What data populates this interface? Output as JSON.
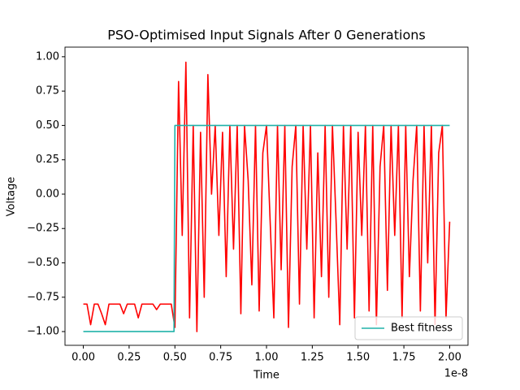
{
  "chart_data": {
    "type": "line",
    "title": "PSO-Optimised Input Signals After 0 Generations",
    "xlabel": "Time",
    "ylabel": "Voltage",
    "x_offset_label": "1e-8",
    "xlim": [
      -0.1,
      2.1
    ],
    "ylim": [
      -1.1,
      1.07
    ],
    "xticks": [
      {
        "value": 0,
        "label": "0.00"
      },
      {
        "value": 0.25,
        "label": "0.25"
      },
      {
        "value": 0.5,
        "label": "0.50"
      },
      {
        "value": 0.75,
        "label": "0.75"
      },
      {
        "value": 1,
        "label": "1.00"
      },
      {
        "value": 1.25,
        "label": "1.25"
      },
      {
        "value": 1.5,
        "label": "1.50"
      },
      {
        "value": 1.75,
        "label": "1.75"
      },
      {
        "value": 2,
        "label": "2.00"
      }
    ],
    "yticks": [
      {
        "value": -1,
        "label": "−1.00"
      },
      {
        "value": -0.75,
        "label": "−0.75"
      },
      {
        "value": -0.5,
        "label": "−0.50"
      },
      {
        "value": -0.25,
        "label": "−0.25"
      },
      {
        "value": 0,
        "label": "0.00"
      },
      {
        "value": 0.25,
        "label": "0.25"
      },
      {
        "value": 0.5,
        "label": "0.50"
      },
      {
        "value": 0.75,
        "label": "0.75"
      },
      {
        "value": 1,
        "label": "1.00"
      }
    ],
    "grid": false,
    "legend": "lower right",
    "series": [
      {
        "color": "#ff0000",
        "x": [
          0,
          0.02,
          0.04,
          0.06,
          0.08,
          0.1,
          0.12,
          0.14,
          0.16,
          0.18,
          0.2,
          0.22,
          0.24,
          0.26,
          0.28,
          0.3,
          0.32,
          0.34,
          0.36,
          0.38,
          0.4,
          0.42,
          0.44,
          0.46,
          0.48,
          0.5,
          0.52,
          0.54,
          0.56,
          0.58,
          0.6,
          0.62,
          0.64,
          0.66,
          0.68,
          0.7,
          0.72,
          0.74,
          0.76,
          0.78,
          0.8,
          0.82,
          0.84,
          0.86,
          0.88,
          0.9,
          0.92,
          0.94,
          0.96,
          0.98,
          1,
          1.02,
          1.04,
          1.06,
          1.08,
          1.1,
          1.12,
          1.14,
          1.16,
          1.18,
          1.2,
          1.22,
          1.24,
          1.26,
          1.28,
          1.3,
          1.32,
          1.34,
          1.36,
          1.38,
          1.4,
          1.42,
          1.44,
          1.46,
          1.48,
          1.5,
          1.52,
          1.54,
          1.56,
          1.58,
          1.6,
          1.62,
          1.64,
          1.66,
          1.68,
          1.7,
          1.72,
          1.74,
          1.76,
          1.78,
          1.8,
          1.82,
          1.84,
          1.86,
          1.88,
          1.9,
          1.92,
          1.94,
          1.96,
          1.98,
          2
        ],
        "values": [
          -0.8,
          -0.8,
          -0.95,
          -0.8,
          -0.8,
          -0.87,
          -0.95,
          -0.8,
          -0.8,
          -0.8,
          -0.8,
          -0.87,
          -0.8,
          -0.8,
          -0.8,
          -0.9,
          -0.8,
          -0.8,
          -0.8,
          -0.8,
          -0.84,
          -0.8,
          -0.8,
          -0.8,
          -0.8,
          -0.97,
          0.82,
          -0.3,
          0.96,
          -0.9,
          0.5,
          -1.0,
          0.45,
          -0.75,
          0.87,
          0.0,
          0.5,
          -0.3,
          0.45,
          -0.6,
          0.5,
          -0.4,
          0.5,
          -0.87,
          0.5,
          0.1,
          -0.66,
          0.5,
          -0.85,
          0.3,
          0.5,
          -0.2,
          -0.9,
          0.5,
          -0.55,
          0.5,
          -0.97,
          0.2,
          0.5,
          -0.8,
          0.5,
          -0.4,
          0.5,
          -0.9,
          0.3,
          -0.6,
          0.5,
          -0.75,
          0.5,
          -0.2,
          -0.95,
          0.5,
          -0.4,
          0.5,
          -0.9,
          0.45,
          -0.3,
          0.5,
          -0.85,
          0.5,
          -0.95,
          0.2,
          0.5,
          -0.7,
          0.5,
          -0.3,
          0.5,
          -0.9,
          0.5,
          -0.6,
          0.1,
          0.5,
          -0.85,
          0.5,
          -0.5,
          0.5,
          -0.95,
          0.3,
          0.5,
          -0.9,
          -0.2
        ]
      },
      {
        "name": "Best fitness",
        "color": "#20b2aa",
        "x": [
          0,
          0.495,
          0.5,
          2
        ],
        "values": [
          -1,
          -1,
          0.5,
          0.5
        ]
      }
    ]
  }
}
